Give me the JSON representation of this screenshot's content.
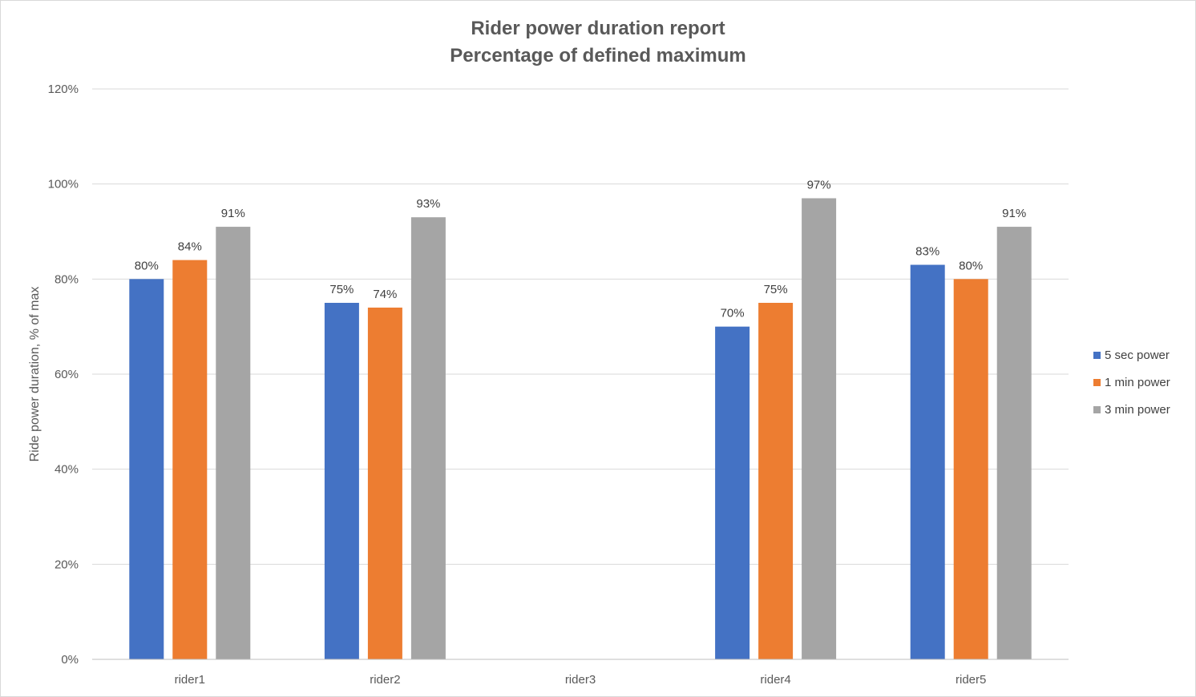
{
  "chart_data": {
    "type": "bar",
    "title": "Rider power duration report",
    "subtitle": "Percentage of defined maximum",
    "ylabel": "Ride power duration, % of max",
    "xlabel": "",
    "ylim": [
      0,
      120
    ],
    "yticks": [
      0,
      20,
      40,
      60,
      80,
      100,
      120
    ],
    "ytick_labels": [
      "0%",
      "20%",
      "40%",
      "60%",
      "80%",
      "100%",
      "120%"
    ],
    "grid": true,
    "legend_position": "right",
    "categories": [
      "rider1",
      "rider2",
      "rider3",
      "rider4",
      "rider5"
    ],
    "series": [
      {
        "name": "5 sec power",
        "color": "#4472c4",
        "values": [
          80,
          75,
          null,
          70,
          83
        ],
        "labels": [
          "80%",
          "75%",
          "",
          "70%",
          "83%"
        ]
      },
      {
        "name": "1 min power",
        "color": "#ed7d31",
        "values": [
          84,
          74,
          null,
          75,
          80
        ],
        "labels": [
          "84%",
          "74%",
          "",
          "75%",
          "80%"
        ]
      },
      {
        "name": "3 min power",
        "color": "#a5a5a5",
        "values": [
          91,
          93,
          null,
          97,
          91
        ],
        "labels": [
          "91%",
          "93%",
          "",
          "97%",
          "91%"
        ]
      }
    ]
  }
}
